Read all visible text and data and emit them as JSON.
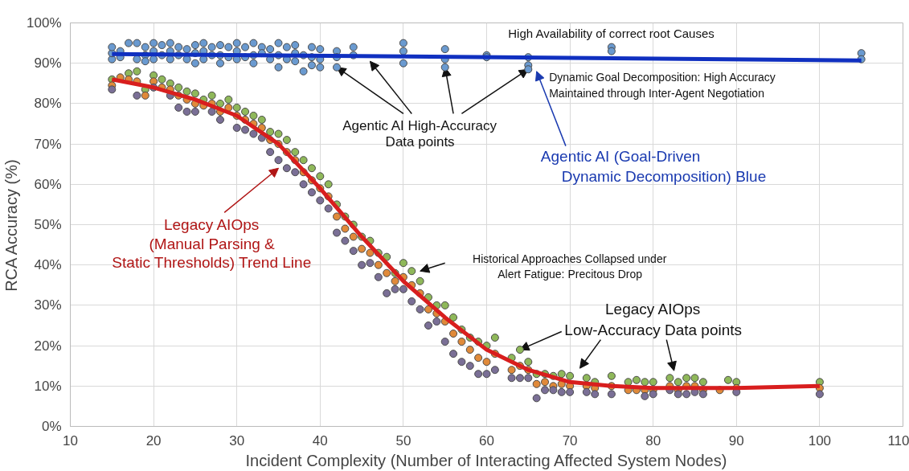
{
  "chart_data": {
    "type": "scatter",
    "xlabel": "Incident Complexity (Number of Interacting Affected System Nodes)",
    "ylabel": "RCA Accuracy (%)",
    "xlim": [
      10,
      110
    ],
    "xticks": [
      10,
      20,
      30,
      40,
      50,
      60,
      70,
      80,
      90,
      100,
      110
    ],
    "ylim": [
      0,
      100
    ],
    "yticks": [
      {
        "value": 0,
        "label": "0%"
      },
      {
        "value": 10,
        "label": "10%"
      },
      {
        "value": 20,
        "label": "20%"
      },
      {
        "value": 30,
        "label": "30%"
      },
      {
        "value": 40,
        "label": "40%"
      },
      {
        "value": 50,
        "label": "50%"
      },
      {
        "value": 60,
        "label": "60%"
      },
      {
        "value": 70,
        "label": "70%"
      },
      {
        "value": 80,
        "label": "80%"
      },
      {
        "value": 90,
        "label": "90%"
      },
      {
        "value": 100,
        "label": "100%"
      }
    ],
    "grid": true,
    "legend": false,
    "series": [
      {
        "marker": "circle",
        "color": "#6a9ad0",
        "x": [
          15,
          15,
          15,
          16,
          16,
          17,
          18,
          18,
          19,
          19,
          19,
          20,
          20,
          20,
          21,
          21,
          22,
          22,
          22,
          23,
          23,
          24,
          24,
          25,
          25,
          25,
          26,
          26,
          26,
          27,
          27,
          28,
          28,
          28,
          29,
          29,
          30,
          30,
          30,
          31,
          31,
          32,
          32,
          32,
          33,
          33,
          34,
          34,
          35,
          35,
          35,
          36,
          36,
          37,
          37,
          37,
          38,
          38,
          39,
          39,
          39,
          40,
          40,
          40,
          42,
          42,
          42,
          44,
          44,
          50,
          50,
          50,
          55,
          55,
          55,
          60,
          60,
          65,
          65,
          65,
          75,
          75,
          105,
          105
        ],
        "values": [
          91,
          92.5,
          94,
          93,
          91.5,
          95,
          95,
          91,
          94,
          92,
          90.5,
          95,
          93,
          91,
          94.5,
          92,
          95,
          93,
          91,
          94,
          92,
          93.5,
          91,
          94.5,
          92.5,
          90,
          95,
          93,
          91,
          94,
          92,
          94.5,
          92,
          90,
          94,
          91.5,
          95,
          93,
          91,
          94,
          91.5,
          95,
          92,
          90,
          94,
          92.5,
          93.5,
          91,
          95,
          92,
          89,
          94,
          91,
          94.5,
          92.5,
          90.5,
          92,
          88,
          94,
          91.5,
          89.5,
          93.5,
          91,
          89,
          93,
          91.5,
          89,
          94,
          92,
          95,
          93,
          90,
          93.5,
          91,
          89,
          92,
          91.5,
          91.5,
          89.5,
          88.5,
          94,
          93,
          92.5,
          91
        ]
      },
      {
        "marker": "circle",
        "color": "#8fb85a",
        "x": [
          15,
          17,
          18,
          19,
          20,
          21,
          22,
          23,
          24,
          25,
          26,
          27,
          28,
          29,
          30,
          31,
          32,
          33,
          34,
          35,
          36,
          37,
          38,
          39,
          40,
          41,
          42,
          43,
          44,
          45,
          46,
          47,
          48,
          49,
          50,
          51,
          52,
          53,
          54,
          55,
          56,
          57,
          58,
          59,
          60,
          61,
          63,
          64,
          65,
          66,
          67,
          68,
          69,
          70,
          72,
          73,
          75,
          77,
          78,
          79,
          80,
          82,
          83,
          84,
          85,
          86,
          89,
          90,
          100
        ],
        "values": [
          86,
          87.5,
          88,
          83.5,
          87,
          86,
          85,
          84,
          83,
          82.5,
          81,
          82,
          80,
          81,
          79,
          78,
          77,
          76,
          73,
          72.5,
          71,
          68,
          66,
          64,
          62,
          60,
          55,
          52,
          50,
          47,
          46,
          43,
          42,
          38,
          40.5,
          38.5,
          36,
          32,
          30,
          30,
          27,
          24,
          22,
          21,
          20,
          22,
          17,
          19,
          16,
          13,
          13,
          12.5,
          13,
          12.5,
          12,
          11,
          12.5,
          11,
          11.5,
          11,
          11,
          12,
          11,
          12,
          12,
          11,
          11.5,
          11,
          11
        ]
      },
      {
        "marker": "circle",
        "color": "#e08a3a",
        "x": [
          15,
          16,
          17,
          18,
          19,
          20,
          21,
          22,
          23,
          24,
          25,
          26,
          27,
          28,
          29,
          30,
          31,
          32,
          33,
          34,
          35,
          36,
          37,
          38,
          39,
          40,
          41,
          42,
          43,
          44,
          45,
          46,
          47,
          48,
          49,
          50,
          51,
          52,
          53,
          54,
          55,
          56,
          57,
          58,
          59,
          60,
          61,
          63,
          64,
          65,
          66,
          67,
          68,
          69,
          70,
          72,
          73,
          75,
          77,
          78,
          79,
          80,
          82,
          83,
          84,
          85,
          86,
          88,
          90,
          100
        ],
        "values": [
          84.5,
          86.5,
          86,
          85.5,
          82,
          85.5,
          84,
          83.5,
          82,
          81,
          80,
          79.5,
          80,
          78,
          79,
          77,
          76,
          75,
          74,
          71,
          70,
          68,
          66,
          63,
          61,
          59,
          57,
          52,
          49,
          47,
          44,
          43,
          40,
          38,
          36,
          37,
          35,
          33,
          29,
          28,
          26,
          23,
          21,
          19,
          17,
          16,
          18,
          14,
          15,
          14,
          10.5,
          11,
          10,
          10.5,
          10,
          10,
          9.5,
          10,
          9,
          9,
          9,
          9,
          10,
          9,
          10,
          10,
          9,
          9,
          9.5,
          9.5
        ]
      },
      {
        "marker": "circle",
        "color": "#7a6f96",
        "x": [
          15,
          18,
          20,
          22,
          23,
          24,
          25,
          27,
          28,
          30,
          31,
          32,
          33,
          34,
          35,
          36,
          37,
          38,
          39,
          40,
          41,
          42,
          43,
          44,
          45,
          46,
          47,
          48,
          49,
          50,
          51,
          52,
          53,
          54,
          55,
          56,
          57,
          58,
          59,
          60,
          61,
          63,
          64,
          65,
          66,
          67,
          68,
          69,
          70,
          72,
          73,
          75,
          79,
          80,
          82,
          83,
          84,
          85,
          86,
          90,
          100
        ],
        "values": [
          83.5,
          82,
          84,
          82,
          79,
          78,
          78,
          78,
          76,
          74,
          73.5,
          72.5,
          71.5,
          68,
          66,
          64,
          63,
          60,
          58,
          56,
          54,
          48,
          46,
          43.5,
          40,
          40.5,
          37,
          33,
          34,
          34,
          31,
          29,
          25,
          26,
          21,
          18,
          16,
          15,
          13,
          13,
          14,
          12,
          12,
          12,
          7,
          9,
          9,
          8.5,
          8.5,
          8.5,
          8,
          8,
          7.5,
          8,
          9,
          8,
          8,
          8.5,
          8,
          8.5,
          8
        ]
      },
      {
        "type": "line",
        "color": "#1030c0",
        "x": [
          15,
          105
        ],
        "values": [
          92.3,
          90.7
        ]
      },
      {
        "type": "line",
        "color": "#d81e1e",
        "x": [
          15,
          20,
          25,
          30,
          35,
          40,
          45,
          50,
          55,
          60,
          65,
          70,
          75,
          80,
          90,
          100
        ],
        "values": [
          86,
          84,
          81,
          77,
          70,
          59,
          47,
          36,
          27,
          19,
          14,
          11,
          10,
          9.5,
          9.5,
          10
        ]
      }
    ],
    "annotations": [
      "High Availability of correct root Causes",
      "Dynamic Goal Decomposition: High Accuracy\nMaintained through Inter-Agent Negotiation",
      {
        "text": "Agentic AI High-Accuracy\nData points",
        "x": 42,
        "y": 89
      },
      "Agentic AI (Goal-Driven\nDynamic Decomposition) Blue",
      "Legacy AIOps\n(Manual Parsing &\nStatic Thresholds) Trend Line",
      "Historical Approaches Collapsed under\nAlert Fatigue: Precitous Drop",
      {
        "text": "Legacy AIOps\nLow-Accuracy Data points",
        "x": 64,
        "y": 19
      }
    ]
  }
}
